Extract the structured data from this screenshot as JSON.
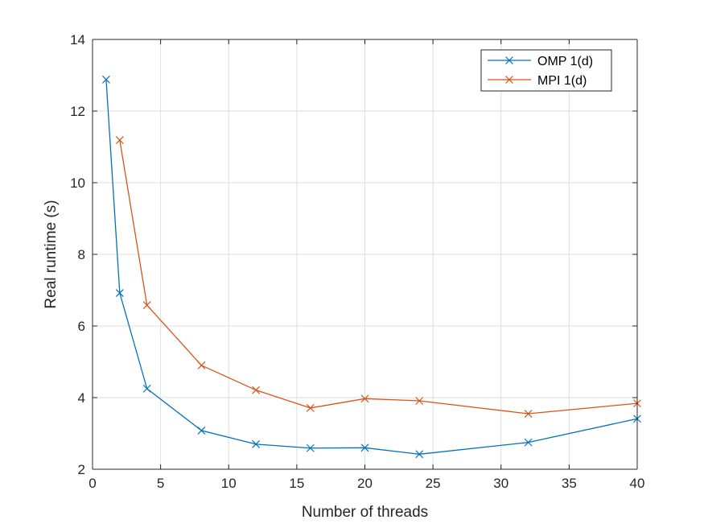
{
  "chart_data": {
    "type": "line",
    "title": "",
    "xlabel": "Number of threads",
    "ylabel": "Real runtime (s)",
    "xlim": [
      0,
      40
    ],
    "ylim": [
      2,
      14
    ],
    "xticks": [
      0,
      5,
      10,
      15,
      20,
      25,
      30,
      35,
      40
    ],
    "yticks": [
      2,
      4,
      6,
      8,
      10,
      12,
      14
    ],
    "grid": true,
    "legend_position": "top-right",
    "marker": "x",
    "series": [
      {
        "name": "OMP 1(d)",
        "color": "#0072BD",
        "x": [
          1,
          2,
          4,
          8,
          12,
          16,
          20,
          24,
          32,
          40
        ],
        "y": [
          12.88,
          6.92,
          4.25,
          3.08,
          2.7,
          2.59,
          2.6,
          2.42,
          2.75,
          3.41
        ]
      },
      {
        "name": "MPI 1(d)",
        "color": "#D95319",
        "x": [
          2,
          4,
          8,
          12,
          16,
          20,
          24,
          32,
          40
        ],
        "y": [
          11.19,
          6.58,
          4.9,
          4.21,
          3.71,
          3.97,
          3.91,
          3.55,
          3.84
        ]
      }
    ]
  }
}
